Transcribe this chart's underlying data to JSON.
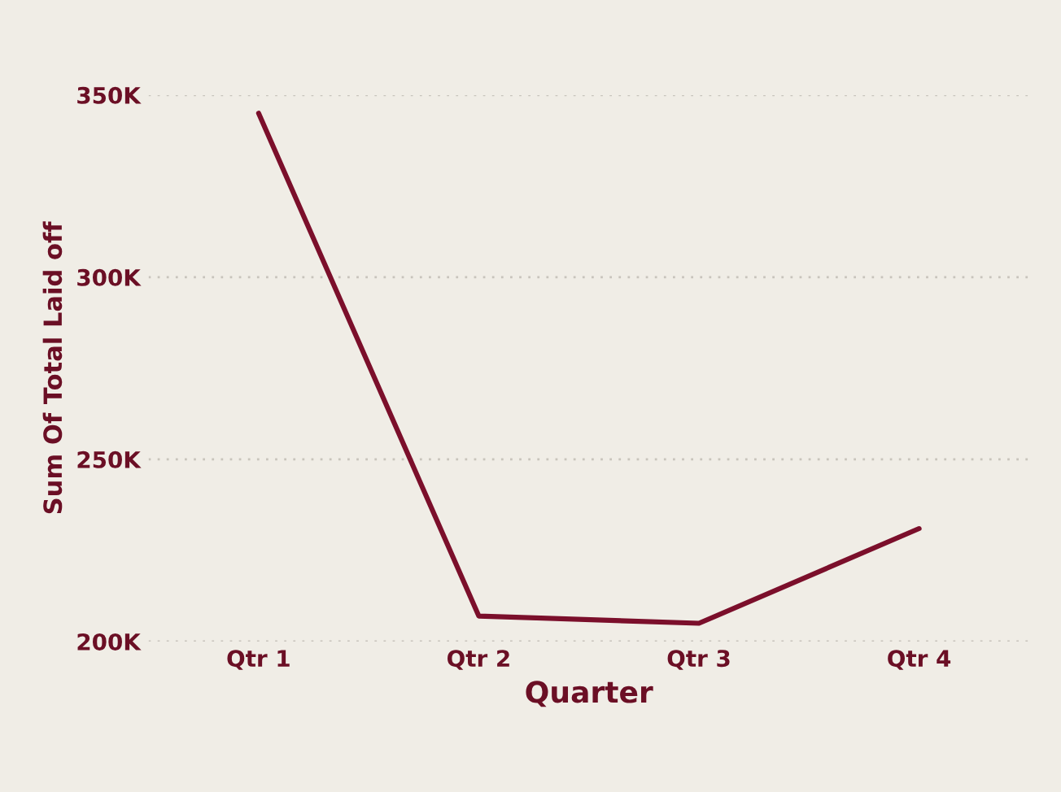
{
  "chart_data": {
    "type": "line",
    "xlabel": "Quarter",
    "ylabel": "Sum Of Total Laid off",
    "categories": [
      "Qtr 1",
      "Qtr 2",
      "Qtr 3",
      "Qtr 4"
    ],
    "series": [
      {
        "color": "#7b0f2b",
        "values": [
          345000,
          207000,
          205000,
          231000
        ]
      }
    ],
    "ylim": [
      200000,
      350000
    ],
    "yticks": [
      {
        "value": 200000,
        "label": "200K"
      },
      {
        "value": 250000,
        "label": "250K"
      },
      {
        "value": 300000,
        "label": "300K"
      },
      {
        "value": 350000,
        "label": "350K"
      }
    ],
    "grid": "y",
    "marker": "none",
    "line_style": "solid",
    "legend": false
  }
}
